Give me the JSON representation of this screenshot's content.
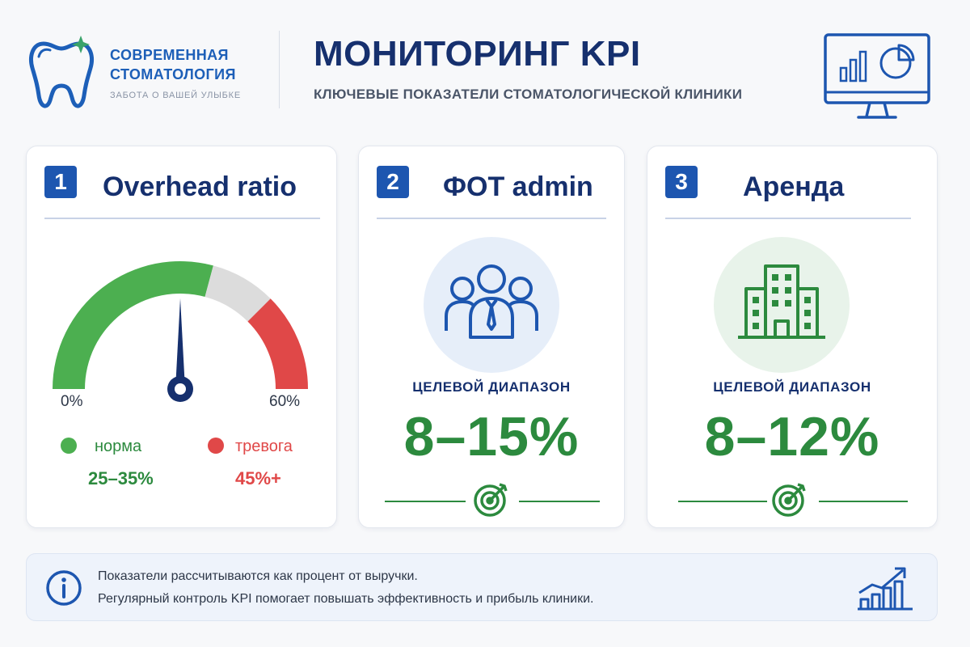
{
  "brand": {
    "name_line1": "СОВРЕМЕННАЯ",
    "name_line2": "СТОМАТОЛОГИЯ",
    "tagline": "ЗАБОТА О ВАШЕЙ УЛЫБКЕ",
    "logo_icon": "tooth-icon"
  },
  "header": {
    "title": "МОНИТОРИНГ KPI",
    "subtitle": "КЛЮЧЕВЫЕ ПОКАЗАТЕЛИ СТОМАТОЛОГИЧЕСКОЙ КЛИНИКИ",
    "icon": "monitor-chart-icon"
  },
  "cards": [
    {
      "number": "1",
      "title": "Overhead ratio",
      "gauge": {
        "min_label": "0%",
        "max_label": "60%",
        "min": 0,
        "max": 60,
        "needle_value": 30,
        "zones": [
          {
            "from": 0,
            "to": 35,
            "color": "#4caf50"
          },
          {
            "from": 35,
            "to": 45,
            "color": "#dcdcdc"
          },
          {
            "from": 45,
            "to": 60,
            "color": "#e04848"
          }
        ]
      },
      "legend": [
        {
          "label": "норма",
          "value": "25–35%",
          "color": "#4caf50"
        },
        {
          "label": "тревога",
          "value": "45%+",
          "color": "#e04848"
        }
      ]
    },
    {
      "number": "2",
      "title": "ФОТ admin",
      "icon": "team-icon",
      "range_label": "ЦЕЛЕВОЙ ДИАПАЗОН",
      "range_value": "8–15%"
    },
    {
      "number": "3",
      "title": "Аренда",
      "icon": "building-icon",
      "range_label": "ЦЕЛЕВОЙ ДИАПАЗОН",
      "range_value": "8–12%"
    }
  ],
  "footer": {
    "line1": "Показатели рассчитываются как процент от выручки.",
    "line2": "Регулярный контроль KPI помогает повышать эффективность и прибыль клиники.",
    "info_icon": "info-icon",
    "growth_icon": "growth-chart-icon"
  },
  "colors": {
    "navy": "#16306e",
    "brand_blue": "#1d56b0",
    "green": "#2c8a3e",
    "red": "#e04848"
  }
}
